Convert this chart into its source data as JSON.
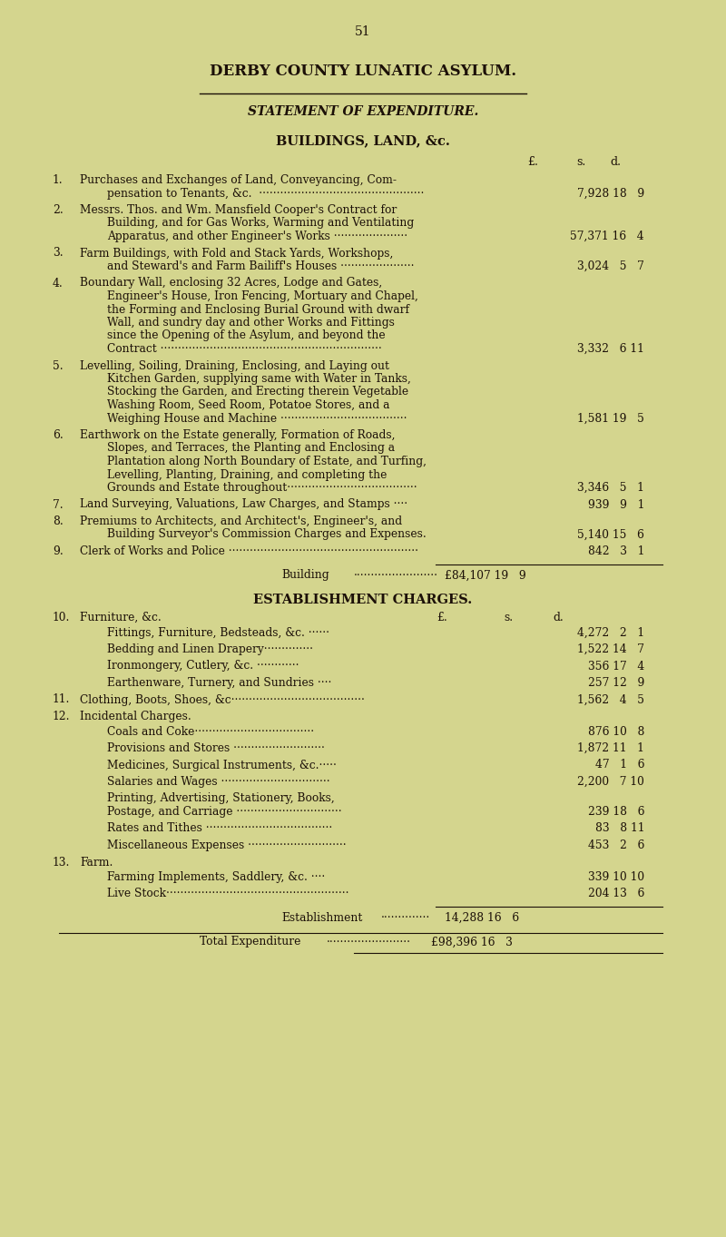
{
  "bg_color": "#d4d58e",
  "text_color": "#1c1008",
  "page_number": "51",
  "title1": "DERBY COUNTY LUNATIC ASYLUM.",
  "title2": "STATEMENT OF EXPENDITURE.",
  "section1_header": "BUILDINGS, LAND, &c.",
  "section2_header": "ESTABLISHMENT CHARGES."
}
